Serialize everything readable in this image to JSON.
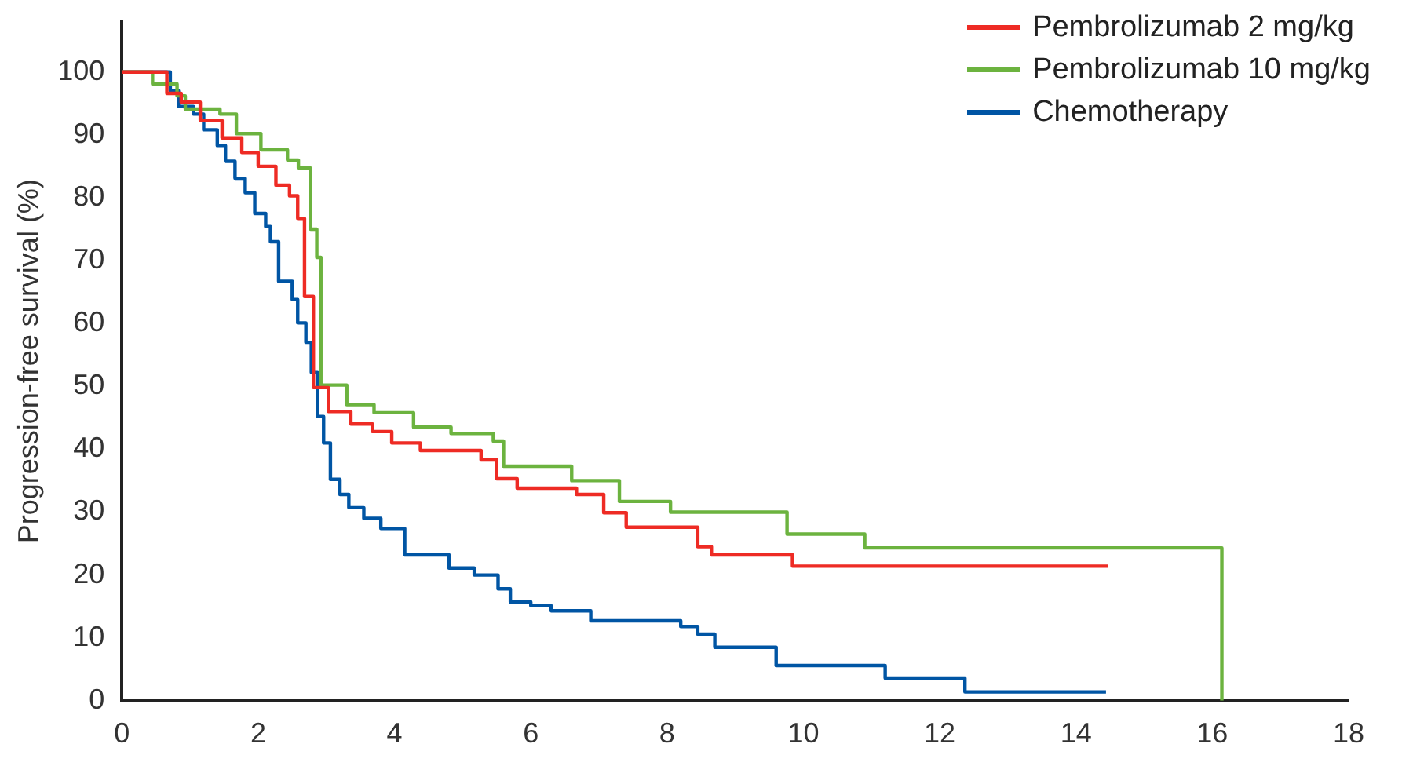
{
  "chart_data": {
    "type": "step",
    "ylabel": "Progression-free survival (%)",
    "xlim": [
      0,
      18
    ],
    "xticks": [
      0,
      2,
      4,
      6,
      8,
      10,
      12,
      14,
      16,
      18
    ],
    "ylim": [
      0,
      108
    ],
    "yticks": [
      0,
      10,
      20,
      30,
      40,
      50,
      60,
      70,
      80,
      90,
      100
    ],
    "grid": false,
    "legend": "top right",
    "marker": "none",
    "line_style": "solid",
    "series": [
      {
        "name": "Pembrolizumab 2 mg/kg",
        "color": "#ee2b24",
        "x": [
          0,
          0.66,
          0.87,
          1.15,
          1.47,
          1.76,
          2.0,
          2.26,
          2.46,
          2.58,
          2.68,
          2.81,
          3.03,
          3.36,
          3.68,
          3.96,
          4.38,
          5.27,
          5.5,
          5.8,
          6.67,
          7.07,
          7.4,
          8.45,
          8.65,
          9.84,
          14.47
        ],
        "values": [
          100,
          96.6,
          95.2,
          92.3,
          89.5,
          87.2,
          85,
          82,
          80.3,
          76.7,
          64.3,
          49.8,
          46,
          44,
          42.8,
          41,
          39.8,
          38.3,
          35.3,
          33.8,
          32.8,
          29.9,
          27.6,
          24.5,
          23.2,
          21.4,
          21.4
        ]
      },
      {
        "name": "Pembrolizumab 10 mg/kg",
        "color": "#6cb33f",
        "x": [
          0,
          0.45,
          0.81,
          0.93,
          1.44,
          1.68,
          2.04,
          2.43,
          2.59,
          2.77,
          2.86,
          2.92,
          3.3,
          3.7,
          4.28,
          4.83,
          5.45,
          5.6,
          6.6,
          7.3,
          8.05,
          9.76,
          10.9,
          16.14,
          16.14
        ],
        "values": [
          100,
          98.1,
          96.2,
          94.1,
          93.3,
          90.2,
          87.6,
          86,
          84.7,
          75,
          70.5,
          50.2,
          47.1,
          45.8,
          43.5,
          42.5,
          41.3,
          37.3,
          35,
          31.7,
          30,
          26.5,
          24.3,
          24.3,
          0
        ]
      },
      {
        "name": "Chemotherapy",
        "color": "#0055a4",
        "x": [
          0,
          0.71,
          0.83,
          1.05,
          1.2,
          1.4,
          1.52,
          1.66,
          1.81,
          1.95,
          2.11,
          2.18,
          2.3,
          2.5,
          2.58,
          2.7,
          2.78,
          2.87,
          2.96,
          3.06,
          3.2,
          3.33,
          3.55,
          3.8,
          4.15,
          4.8,
          5.17,
          5.52,
          5.7,
          6.0,
          6.3,
          6.88,
          8.2,
          8.45,
          8.7,
          9.6,
          11.2,
          12.37,
          14.44
        ],
        "values": [
          100,
          97,
          94.5,
          93.3,
          90.8,
          88.3,
          85.8,
          83.1,
          80.8,
          77.5,
          75.4,
          73,
          66.7,
          63.8,
          60.1,
          57,
          52.2,
          45.2,
          41,
          35.2,
          32.8,
          30.7,
          29,
          27.4,
          23.2,
          21.1,
          20,
          17.8,
          15.7,
          15.1,
          14.3,
          12.7,
          11.8,
          10.6,
          8.5,
          5.6,
          3.6,
          1.4,
          1.4
        ]
      }
    ]
  }
}
